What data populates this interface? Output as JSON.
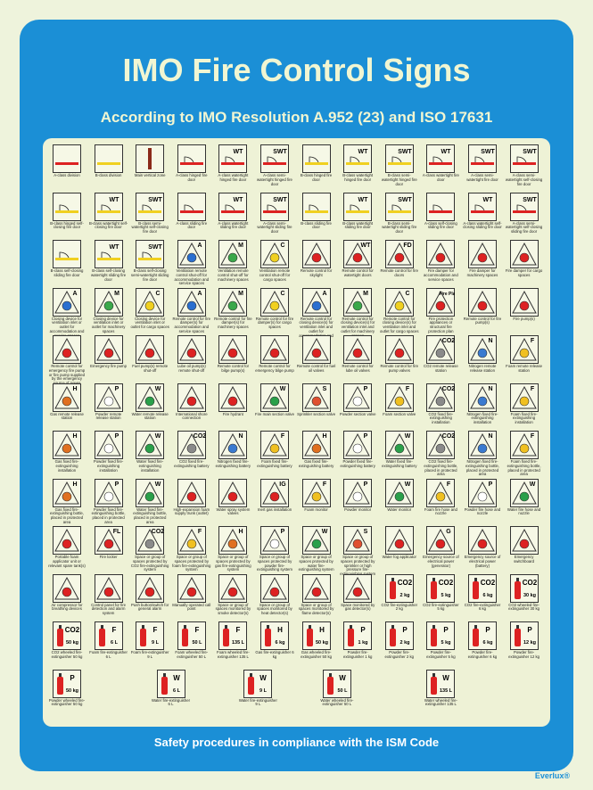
{
  "header": {
    "title": "IMO Fire Control Signs",
    "subtitle": "According to IMO Resolution A.952 (23) and ISO 17631"
  },
  "signs": [
    [
      {
        "caption": "A-class division"
      },
      {
        "caption": "B-class division"
      },
      {
        "caption": "Main vertical zone"
      },
      {
        "caption": "A-class hinged fire door"
      },
      {
        "caption": "A-class watertight hinged fire door",
        "mark": "WT"
      },
      {
        "caption": "A-class semi-watertight hinged fire door",
        "mark": "SWT"
      },
      {
        "caption": "B-class hinged fire door"
      },
      {
        "caption": "B-class watertight hinged fire door",
        "mark": "WT"
      },
      {
        "caption": "B-class semi-watertight hinged fire door",
        "mark": "SWT"
      },
      {
        "caption": "A-class watertight fire door",
        "mark": "WT"
      },
      {
        "caption": "A-class semi-watertight fire door",
        "mark": "SWT"
      },
      {
        "caption": "A-class semi-watertight self-closing fire door",
        "mark": "SWT"
      }
    ],
    [
      {
        "caption": "B-class hinged self-closing fire door"
      },
      {
        "caption": "B-class watertight self-closing fire door",
        "mark": "WT"
      },
      {
        "caption": "B-class semi-watertight self-closing fire door",
        "mark": "SWT"
      },
      {
        "caption": "A-class sliding fire door"
      },
      {
        "caption": "A-class watertight sliding fire door",
        "mark": "WT"
      },
      {
        "caption": "A-class semi-watertight sliding fire door",
        "mark": "SWT"
      },
      {
        "caption": "B-class sliding fire door"
      },
      {
        "caption": "B-class watertight sliding fire door",
        "mark": "WT"
      },
      {
        "caption": "B-class semi-watertight sliding fire door",
        "mark": "SWT"
      },
      {
        "caption": "A-class self-closing sliding fire door"
      },
      {
        "caption": "A-class watertight self-closing sliding fire door",
        "mark": "WT"
      },
      {
        "caption": "A-class semi-watertight self-closing sliding fire door",
        "mark": "SWT"
      }
    ],
    [
      {
        "caption": "B-class self-closing sliding fire door"
      },
      {
        "caption": "B-class self-closing watertight sliding fire door",
        "mark": "WT"
      },
      {
        "caption": "B-class self-closing semi-watertight sliding fire door",
        "mark": "SWT"
      },
      {
        "caption": "Ventilation remote control shut-off for accommodation and service spaces",
        "mark": "A"
      },
      {
        "caption": "Ventilation remote control shut-off for machinery spaces",
        "mark": "M"
      },
      {
        "caption": "Ventilation remote control shut-off for cargo spaces",
        "mark": "C"
      },
      {
        "caption": "Remote control for skylight"
      },
      {
        "caption": "Remote control for watertight doors",
        "mark": "WT"
      },
      {
        "caption": "Remote control for fire doors",
        "mark": "FD"
      },
      {
        "caption": "Fire damper for accommodation and service spaces"
      },
      {
        "caption": "Fire damper for machinery spaces"
      },
      {
        "caption": "Fire damper for cargo spaces"
      }
    ],
    [
      {
        "caption": "Closing device for ventilation inlet or outlet for accommodation and service spaces",
        "mark": "A"
      },
      {
        "caption": "Closing device for ventilation inlet or outlet for machinery spaces",
        "mark": "M"
      },
      {
        "caption": "Closing device for ventilation inlet or outlet for cargo spaces",
        "mark": "C"
      },
      {
        "caption": "Remote control for fire damper(s) for accommodation and service spaces",
        "mark": "A"
      },
      {
        "caption": "Remote control for fire damper(s) for machinery spaces",
        "mark": "M"
      },
      {
        "caption": "Remote control for fire damper(s) for cargo spaces",
        "mark": "C"
      },
      {
        "caption": "Remote control for closing device(s) for ventilation inlet and outlet for accommodation and service spaces",
        "mark": "A"
      },
      {
        "caption": "Remote control for closing device(s) for ventilation inlet and outlet for machinery spaces",
        "mark": "M"
      },
      {
        "caption": "Remote control for closing device(s) for ventilation inlet and outlet for cargo spaces",
        "mark": "C"
      },
      {
        "caption": "Fire protection appliances or structural fire protection plan",
        "mark": "Fire Plan"
      },
      {
        "caption": "Remote control for fire pump(s)"
      },
      {
        "caption": "Fire pump(s)"
      }
    ],
    [
      {
        "caption": "Remote control for emergency fire pump or fire pump supplied by the emergency source of power"
      },
      {
        "caption": "Emergency fire pump"
      },
      {
        "caption": "Fuel pump(s) remote shut-off"
      },
      {
        "caption": "Lube oil pump(s) remote shut-off"
      },
      {
        "caption": "Remote control for bilge pump(s)"
      },
      {
        "caption": "Remote control for emergency bilge pump"
      },
      {
        "caption": "Remote control for fuel oil valves"
      },
      {
        "caption": "Remote control for lube oil valves"
      },
      {
        "caption": "Remote control for fire pump valves"
      },
      {
        "caption": "CO2 remote release station",
        "mark": "CO2"
      },
      {
        "caption": "Nitrogen remote release station",
        "mark": "N"
      },
      {
        "caption": "Foam remote release station",
        "mark": "F"
      }
    ],
    [
      {
        "caption": "Gas remote release station",
        "mark": "H"
      },
      {
        "caption": "Powder remote release station",
        "mark": "P"
      },
      {
        "caption": "Water remote release station",
        "mark": "W"
      },
      {
        "caption": "International shore connection"
      },
      {
        "caption": "Fire hydrant"
      },
      {
        "caption": "Fire main section valve",
        "mark": "W"
      },
      {
        "caption": "Sprinkler section valve",
        "mark": "S"
      },
      {
        "caption": "Powder section valve",
        "mark": "P"
      },
      {
        "caption": "Foam section valve",
        "mark": "F"
      },
      {
        "caption": "CO2 fixed fire-extinguishing installation",
        "mark": "CO2"
      },
      {
        "caption": "Nitrogen fixed fire-extinguishing installation",
        "mark": "N"
      },
      {
        "caption": "Foam fixed fire-extinguishing installation",
        "mark": "F"
      }
    ],
    [
      {
        "caption": "Gas fixed fire-extinguishing installation",
        "mark": "H"
      },
      {
        "caption": "Powder fixed fire-extinguishing installation",
        "mark": "P"
      },
      {
        "caption": "Water fixed fire-extinguishing installation",
        "mark": "W"
      },
      {
        "caption": "CO2 fixed fire-extinguishing battery",
        "mark": "CO2"
      },
      {
        "caption": "Nitrogen fixed fire-extinguishing battery",
        "mark": "N"
      },
      {
        "caption": "Foam fixed fire-extinguishing battery",
        "mark": "F"
      },
      {
        "caption": "Gas fixed fire-extinguishing battery",
        "mark": "H"
      },
      {
        "caption": "Powder fixed fire-extinguishing battery",
        "mark": "P"
      },
      {
        "caption": "Water fixed fire-extinguishing battery",
        "mark": "W"
      },
      {
        "caption": "CO2 fixed fire-extinguishing bottle, placed in protected area",
        "mark": "CO2"
      },
      {
        "caption": "Nitrogen fixed fire-extinguishing bottle, placed in protected area",
        "mark": "N"
      },
      {
        "caption": "Foam fixed fire-extinguishing bottle, placed in protected area",
        "mark": "F"
      }
    ],
    [
      {
        "caption": "Gas fixed fire-extinguishing bottle, placed in protected area",
        "mark": "H"
      },
      {
        "caption": "Powder fixed fire-extinguishing bottle, placed in protected area",
        "mark": "P"
      },
      {
        "caption": "Water fixed fire-extinguishing bottle, placed in protected area",
        "mark": "W"
      },
      {
        "caption": "High-expansion foam supply trunk (outlet)"
      },
      {
        "caption": "Water spray system valves"
      },
      {
        "caption": "Inert gas installation",
        "mark": "IG"
      },
      {
        "caption": "Foam monitor",
        "mark": "F"
      },
      {
        "caption": "Powder monitor",
        "mark": "P"
      },
      {
        "caption": "Water monitor",
        "mark": "W"
      },
      {
        "caption": "Foam fire hose and nozzle",
        "mark": "F"
      },
      {
        "caption": "Powder fire hose and nozzle",
        "mark": "P"
      },
      {
        "caption": "Water fire hose and nozzle",
        "mark": "W"
      }
    ],
    [
      {
        "caption": "Portable foam applicator unit or relevant spare tank(s)"
      },
      {
        "caption": "Fire locker",
        "mark": "FL"
      },
      {
        "caption": "Space or group of spaces protected by CO2 fire-extinguishing system",
        "mark": "CO2"
      },
      {
        "caption": "Space or group of spaces protected by foam fire-extinguishing system",
        "mark": "F"
      },
      {
        "caption": "Space or group of spaces protected by gas fire-extinguishing system",
        "mark": "H"
      },
      {
        "caption": "Space or group of spaces protected by powder fire-extinguishing system",
        "mark": "P"
      },
      {
        "caption": "Space or group of spaces protected by water fire-extinguishing system",
        "mark": "W"
      },
      {
        "caption": "Space or group of spaces protected by sprinkler or high pressure fire-extinguishing system",
        "mark": "S"
      },
      {
        "caption": "Water fog applicator"
      },
      {
        "caption": "Emergency source of electrical power (generator)",
        "mark": "G"
      },
      {
        "caption": "Emergency source of electrical power (battery)"
      },
      {
        "caption": "Emergency switchboard"
      }
    ],
    [
      {
        "caption": "Air compressor for breathing devices"
      },
      {
        "caption": "Control panel for fire detection and alarm system"
      },
      {
        "caption": "Push button/switch for general alarm"
      },
      {
        "caption": "Manually operated call point"
      },
      {
        "caption": "Space or group of spaces monitored by smoke detector(s)"
      },
      {
        "caption": "Space or group of spaces monitored by heat detector(s)"
      },
      {
        "caption": "Space or group of spaces monitored by flame detector(s)"
      },
      {
        "caption": "Space monitored by gas detector(s)"
      },
      {
        "caption": "CO2 fire-extinguisher 2 kg",
        "mark": "CO2",
        "size": "2 kg"
      },
      {
        "caption": "CO2 fire-extinguisher 5 kg",
        "mark": "CO2",
        "size": "5 kg"
      },
      {
        "caption": "CO2 fire-extinguisher 6 kg",
        "mark": "CO2",
        "size": "6 kg"
      },
      {
        "caption": "CO2 wheeled fire-extinguisher 30 kg",
        "mark": "CO2",
        "size": "30 kg"
      }
    ],
    [
      {
        "caption": "CO2 wheeled fire-extinguisher 50 kg",
        "mark": "CO2",
        "size": "50 kg"
      },
      {
        "caption": "Foam fire-extinguisher 6 L",
        "mark": "F",
        "size": "6 L"
      },
      {
        "caption": "Foam fire-extinguisher 9 L",
        "mark": "F",
        "size": "9 L"
      },
      {
        "caption": "Foam wheeled fire-extinguisher 50 L",
        "mark": "F",
        "size": "50 L"
      },
      {
        "caption": "Foam wheeled fire-extinguisher 135 L",
        "mark": "F",
        "size": "135 L"
      },
      {
        "caption": "Gas fire-extinguisher 6 kg",
        "mark": "H",
        "size": "6 kg"
      },
      {
        "caption": "Gas wheeled fire-extinguisher 50 kg",
        "mark": "H",
        "size": "50 kg"
      },
      {
        "caption": "Powder fire-extinguisher 1 kg",
        "mark": "P",
        "size": "1 kg"
      },
      {
        "caption": "Powder fire-extinguisher 2 kg",
        "mark": "P",
        "size": "2 kg"
      },
      {
        "caption": "Powder fire-extinguisher 5 kg",
        "mark": "P",
        "size": "5 kg"
      },
      {
        "caption": "Powder fire-extinguisher 6 kg",
        "mark": "P",
        "size": "6 kg"
      },
      {
        "caption": "Powder fire-extinguisher 12 kg",
        "mark": "P",
        "size": "12 kg"
      }
    ],
    [
      {
        "caption": "Powder wheeled fire-extinguisher 50 kg",
        "mark": "P",
        "size": "50 kg"
      },
      {
        "caption": "Water fire-extinguisher 6 L",
        "mark": "W",
        "size": "6 L"
      },
      {
        "caption": "Water fire-extinguisher 9 L",
        "mark": "W",
        "size": "9 L"
      },
      {
        "caption": "Water wheeled fire-extinguisher 50 L",
        "mark": "W",
        "size": "50 L"
      },
      {
        "caption": "Water wheeled fire-extinguisher 135 L",
        "mark": "W",
        "size": "135 L"
      }
    ]
  ],
  "footer": {
    "text": "Safety procedures in compliance with the ISM Code",
    "brand": "Everlux®"
  }
}
